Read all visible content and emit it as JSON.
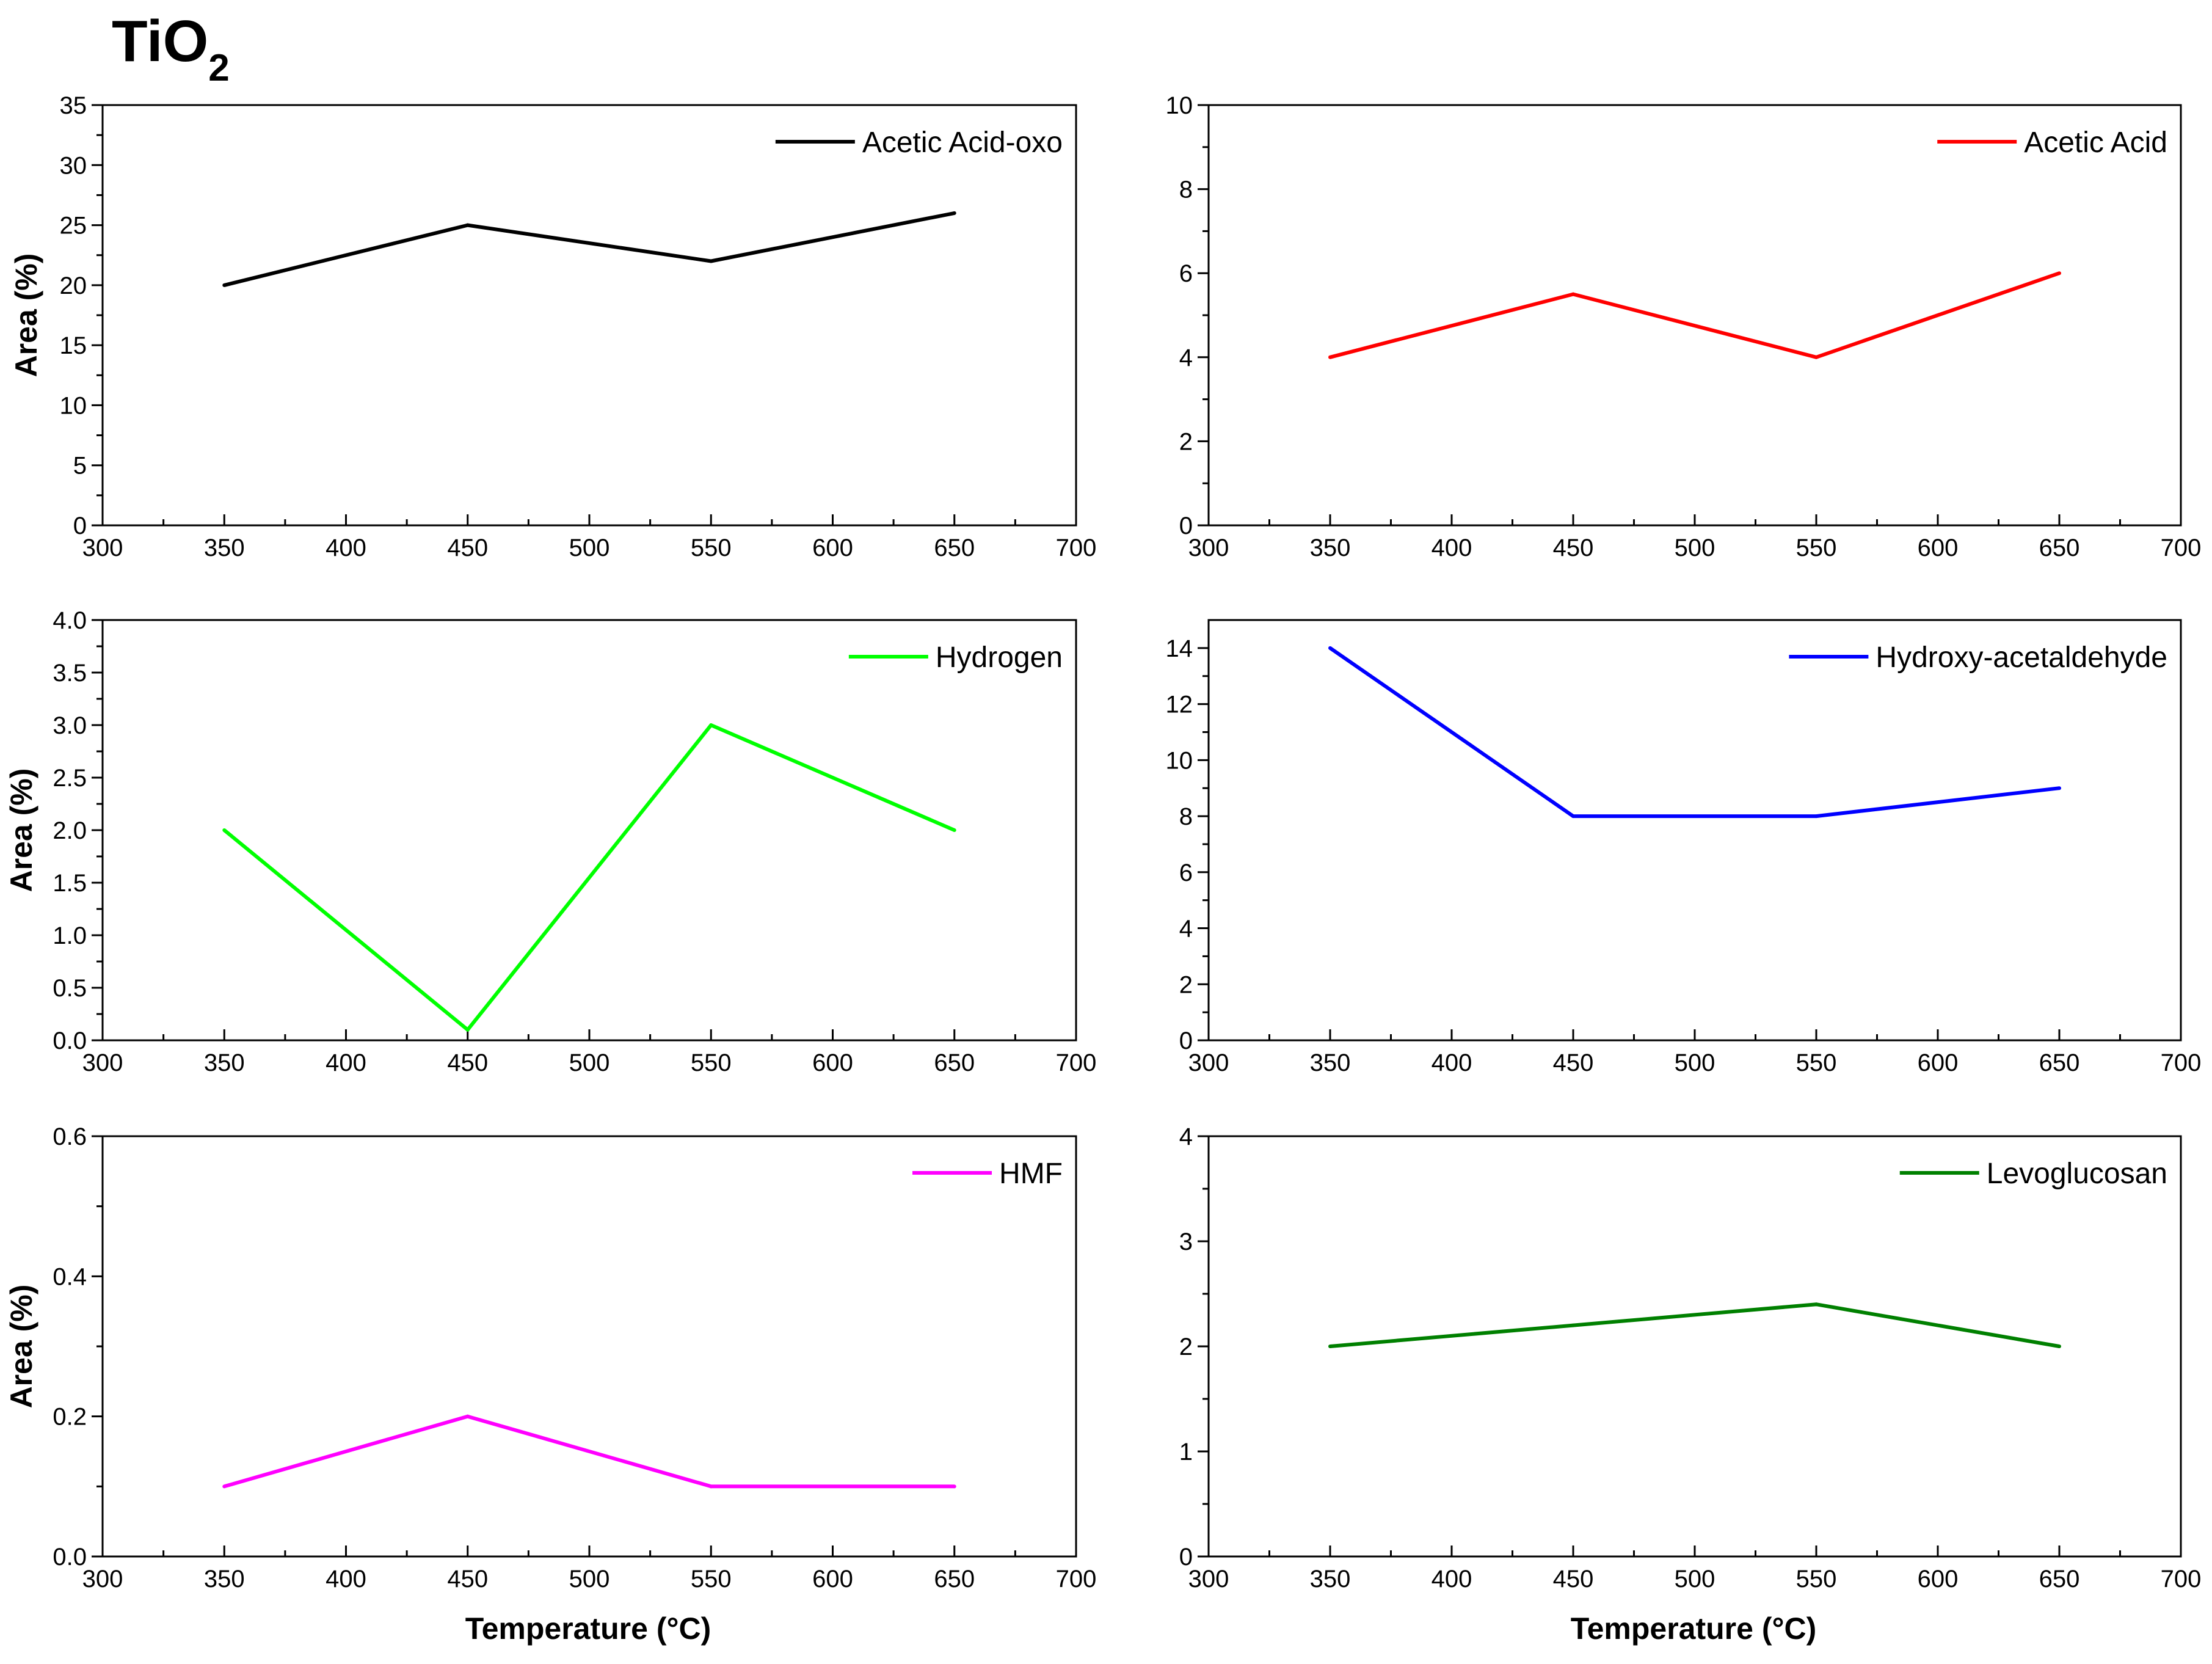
{
  "figure": {
    "title_main": "TiO",
    "title_sub": "2",
    "xlabel": "Temperature (°C)",
    "ylabel": "Area (%)"
  },
  "chart_data": [
    {
      "type": "line",
      "title": "Acetic Acid-oxo",
      "legend": "Acetic Acid-oxo",
      "color": "#000000",
      "x": [
        350,
        450,
        550,
        650
      ],
      "y": [
        20,
        25,
        22,
        26
      ],
      "xlim": [
        300,
        700
      ],
      "ylim": [
        0,
        35
      ],
      "xticks": [
        300,
        350,
        400,
        450,
        500,
        550,
        600,
        650,
        700
      ],
      "yticks": [
        0,
        5,
        10,
        15,
        20,
        25,
        30,
        35
      ],
      "ytick_labels": [
        "0",
        "5",
        "10",
        "15",
        "20",
        "25",
        "30",
        "35"
      ],
      "ylabel": "Area (%)",
      "xlabel": "",
      "legend_position": "top-right"
    },
    {
      "type": "line",
      "title": "Acetic Acid",
      "legend": "Acetic Acid",
      "color": "#ff0000",
      "x": [
        350,
        450,
        550,
        650
      ],
      "y": [
        4,
        5.5,
        4,
        6
      ],
      "xlim": [
        300,
        700
      ],
      "ylim": [
        0,
        10
      ],
      "xticks": [
        300,
        350,
        400,
        450,
        500,
        550,
        600,
        650,
        700
      ],
      "yticks": [
        0,
        2,
        4,
        6,
        8,
        10
      ],
      "ytick_labels": [
        "0",
        "2",
        "4",
        "6",
        "8",
        "10"
      ],
      "ylabel": "",
      "xlabel": "",
      "legend_position": "top-right"
    },
    {
      "type": "line",
      "title": "Hydrogen",
      "legend": "Hydrogen",
      "color": "#00ff00",
      "x": [
        350,
        450,
        550,
        650
      ],
      "y": [
        2.0,
        0.1,
        3.0,
        2.0
      ],
      "xlim": [
        300,
        700
      ],
      "ylim": [
        0,
        4
      ],
      "xticks": [
        300,
        350,
        400,
        450,
        500,
        550,
        600,
        650,
        700
      ],
      "yticks": [
        0,
        0.5,
        1.0,
        1.5,
        2.0,
        2.5,
        3.0,
        3.5,
        4.0
      ],
      "ytick_labels": [
        "0.0",
        "0.5",
        "1.0",
        "1.5",
        "2.0",
        "2.5",
        "3.0",
        "3.5",
        "4.0"
      ],
      "ylabel": "Area (%)",
      "xlabel": "",
      "legend_position": "top-right"
    },
    {
      "type": "line",
      "title": "Hydroxy-acetaldehyde",
      "legend": "Hydroxy-acetaldehyde",
      "color": "#0000ff",
      "x": [
        350,
        450,
        550,
        650
      ],
      "y": [
        14,
        8,
        8,
        9
      ],
      "xlim": [
        300,
        700
      ],
      "ylim": [
        0,
        15
      ],
      "xticks": [
        300,
        350,
        400,
        450,
        500,
        550,
        600,
        650,
        700
      ],
      "yticks": [
        0,
        2,
        4,
        6,
        8,
        10,
        12,
        14
      ],
      "ytick_labels": [
        "0",
        "2",
        "4",
        "6",
        "8",
        "10",
        "12",
        "14"
      ],
      "ylabel": "",
      "xlabel": "",
      "legend_position": "top-right"
    },
    {
      "type": "line",
      "title": "HMF",
      "legend": "HMF",
      "color": "#ff00ff",
      "x": [
        350,
        450,
        550,
        650
      ],
      "y": [
        0.1,
        0.2,
        0.1,
        0.1
      ],
      "xlim": [
        300,
        700
      ],
      "ylim": [
        0,
        0.6
      ],
      "xticks": [
        300,
        350,
        400,
        450,
        500,
        550,
        600,
        650,
        700
      ],
      "yticks": [
        0,
        0.2,
        0.4,
        0.6
      ],
      "ytick_labels": [
        "0.0",
        "0.2",
        "0.4",
        "0.6"
      ],
      "ylabel": "Area (%)",
      "xlabel": "Temperature (°C)",
      "legend_position": "top-right"
    },
    {
      "type": "line",
      "title": "Levoglucosan",
      "legend": "Levoglucosan",
      "color": "#008000",
      "x": [
        350,
        450,
        550,
        650
      ],
      "y": [
        2.0,
        2.2,
        2.4,
        2.0
      ],
      "xlim": [
        300,
        700
      ],
      "ylim": [
        0,
        4
      ],
      "xticks": [
        300,
        350,
        400,
        450,
        500,
        550,
        600,
        650,
        700
      ],
      "yticks": [
        0,
        1,
        2,
        3,
        4
      ],
      "ytick_labels": [
        "0",
        "1",
        "2",
        "3",
        "4"
      ],
      "ylabel": "",
      "xlabel": "Temperature (°C)",
      "legend_position": "top-right"
    }
  ]
}
